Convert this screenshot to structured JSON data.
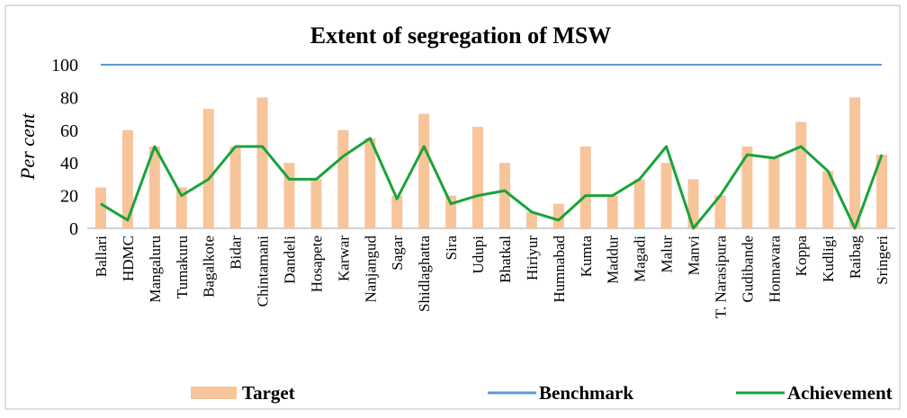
{
  "chart_data": {
    "type": "bar",
    "title": "Extent of segregation of MSW",
    "y_label": "Per cent",
    "categories": [
      "Ballari",
      "HDMC",
      "Mangaluru",
      "Tumakuru",
      "Bagalkote",
      "Bidar",
      "Chintamani",
      "Dandeli",
      "Hosapete",
      "Karwar",
      "Nanjangud",
      "Sagar",
      "Shidlaghatta",
      "Sira",
      "Udupi",
      "Bhatkal",
      "Hiriyur",
      "Humnabad",
      "Kumta",
      "Maddur",
      "Magadi",
      "Malur",
      "Manvi",
      "T. Narasipura",
      "Gudibande",
      "Honnavara",
      "Koppa",
      "Kudligi",
      "Raibag",
      "Sringeri"
    ],
    "series": [
      {
        "name": "Target",
        "type": "bar",
        "color": "#f8c49a",
        "values": [
          25,
          60,
          50,
          25,
          73,
          50,
          80,
          40,
          30,
          60,
          55,
          20,
          70,
          20,
          62,
          40,
          10,
          15,
          50,
          20,
          30,
          40,
          30,
          20,
          50,
          43,
          65,
          35,
          80,
          45
        ]
      },
      {
        "name": "Benchmark",
        "type": "line",
        "color": "#5b9bd5",
        "values": [
          100,
          100,
          100,
          100,
          100,
          100,
          100,
          100,
          100,
          100,
          100,
          100,
          100,
          100,
          100,
          100,
          100,
          100,
          100,
          100,
          100,
          100,
          100,
          100,
          100,
          100,
          100,
          100,
          100,
          100
        ]
      },
      {
        "name": "Achievement",
        "type": "line",
        "color": "#1aa33a",
        "values": [
          15,
          5,
          50,
          20,
          30,
          50,
          50,
          30,
          30,
          44,
          55,
          18,
          50,
          15,
          20,
          23,
          10,
          5,
          20,
          20,
          30,
          50,
          0,
          20,
          45,
          43,
          50,
          35,
          0,
          45
        ]
      }
    ],
    "ylim": [
      0,
      100
    ],
    "yticks": [
      0,
      20,
      40,
      60,
      80,
      100
    ],
    "grid": false,
    "legend": "bottom"
  }
}
